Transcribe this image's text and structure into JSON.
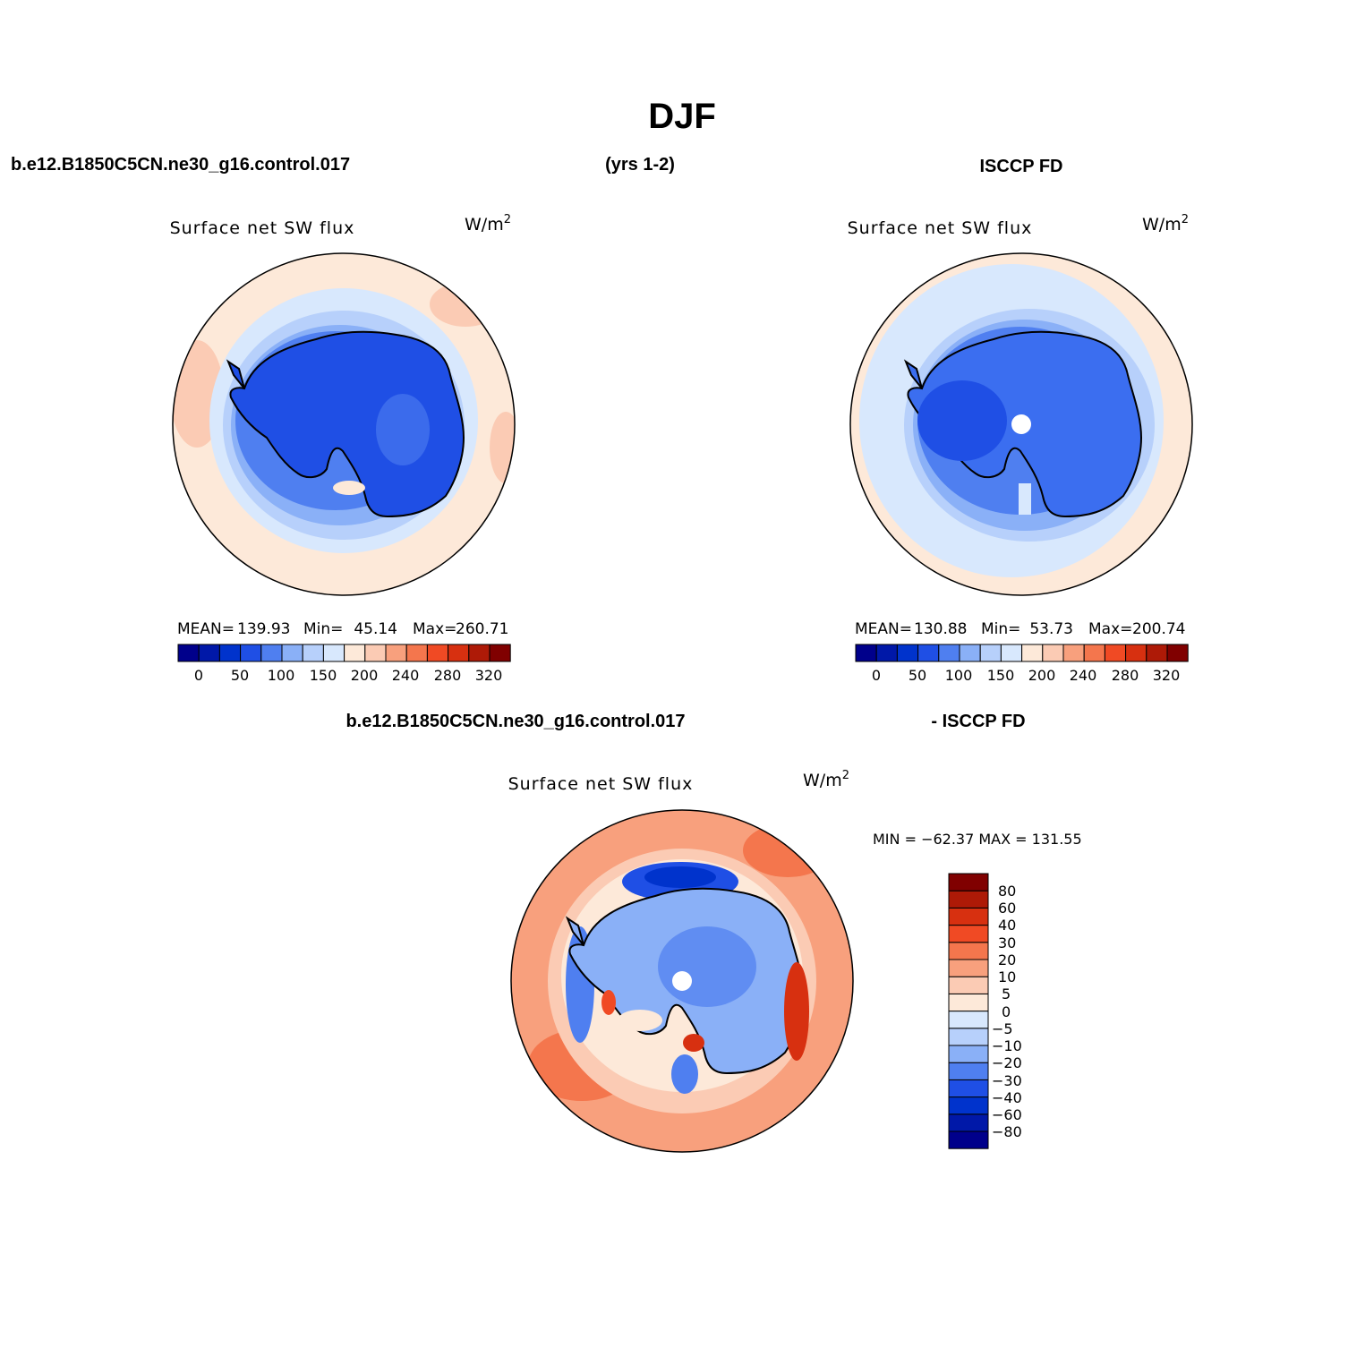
{
  "figure": {
    "title": "DJF",
    "case_name": "b.e12.B1850C5CN.ne30_g16.control.017",
    "years": "(yrs 1-2)",
    "obs_name": "ISCCP FD",
    "diff_case_name": "b.e12.B1850C5CN.ne30_g16.control.017",
    "diff_obs_name": "- ISCCP FD"
  },
  "colors": {
    "seq": [
      "#00008b",
      "#0018a8",
      "#0033cc",
      "#1f4fe5",
      "#4f7ff0",
      "#8ab0f7",
      "#b7d0fb",
      "#d8e8fd",
      "#fde9d9",
      "#fbcbb4",
      "#f8a07d",
      "#f4764d",
      "#f04a24",
      "#d73010",
      "#ae1a07",
      "#800000"
    ],
    "diff": [
      "#00008b",
      "#0018a8",
      "#0033cc",
      "#1f4fe5",
      "#4f7ff0",
      "#8ab0f7",
      "#b7d0fb",
      "#d8e8fd",
      "#fde9d9",
      "#fbcbb4",
      "#f8a07d",
      "#f4764d",
      "#f04a24",
      "#d73010",
      "#ae1a07",
      "#800000"
    ],
    "antarctica_model": "#1f4fe5",
    "antarctica_obs": "#3b6ef0",
    "diff_land": "#8ab0f7"
  },
  "panels": {
    "model": {
      "title": "Surface net SW flux",
      "units_base": "W/m",
      "units_exp": "2",
      "stats": {
        "mean_label": "MEAN=",
        "mean": "139.93",
        "min_label": "Min=",
        "min": "45.14",
        "max_label": "Max=",
        "max": "260.71"
      },
      "colorbar_labels": [
        "0",
        "50",
        "100",
        "150",
        "200",
        "240",
        "280",
        "320"
      ]
    },
    "obs": {
      "title": "Surface net SW flux",
      "units_base": "W/m",
      "units_exp": "2",
      "stats": {
        "mean_label": "MEAN=",
        "mean": "130.88",
        "min_label": "Min=",
        "min": "53.73",
        "max_label": "Max=",
        "max": "200.74"
      },
      "colorbar_labels": [
        "0",
        "50",
        "100",
        "150",
        "200",
        "240",
        "280",
        "320"
      ]
    },
    "diff": {
      "title": "Surface net SW flux",
      "units_base": "W/m",
      "units_exp": "2",
      "minmax_text": "MIN = −62.37  MAX = 131.55",
      "colorbar_labels": [
        "80",
        "60",
        "40",
        "30",
        "20",
        "10",
        "5",
        "0",
        "−5",
        "−10",
        "−20",
        "−30",
        "−40",
        "−60",
        "−80"
      ]
    }
  }
}
